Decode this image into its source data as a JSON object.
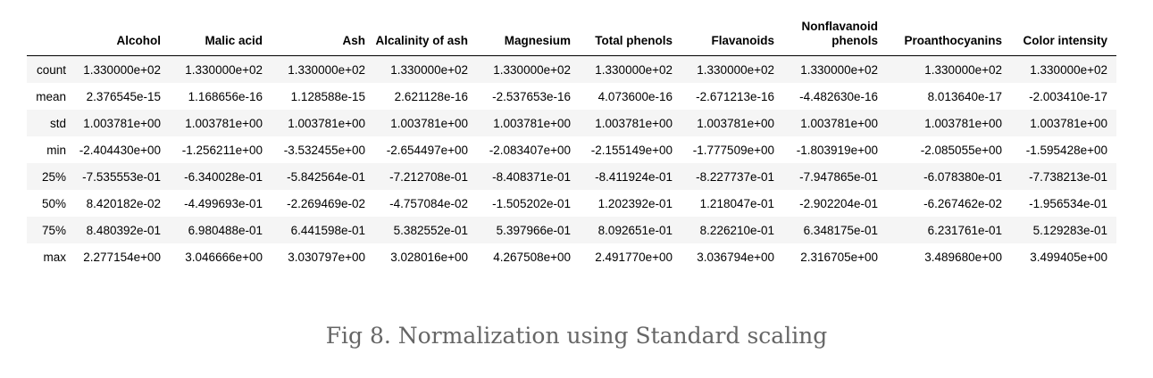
{
  "table": {
    "columns": [
      "Alcohol",
      "Malic acid",
      "Ash",
      "Alcalinity of ash",
      "Magnesium",
      "Total phenols",
      "Flavanoids",
      "Nonflavanoid phenols",
      "Proanthocyanins",
      "Color intensity"
    ],
    "rows": [
      {
        "label": "count",
        "values": [
          "1.330000e+02",
          "1.330000e+02",
          "1.330000e+02",
          "1.330000e+02",
          "1.330000e+02",
          "1.330000e+02",
          "1.330000e+02",
          "1.330000e+02",
          "1.330000e+02",
          "1.330000e+02"
        ]
      },
      {
        "label": "mean",
        "values": [
          "2.376545e-15",
          "1.168656e-16",
          "1.128588e-15",
          "2.621128e-16",
          "-2.537653e-16",
          "4.073600e-16",
          "-2.671213e-16",
          "-4.482630e-16",
          "8.013640e-17",
          "-2.003410e-17"
        ]
      },
      {
        "label": "std",
        "values": [
          "1.003781e+00",
          "1.003781e+00",
          "1.003781e+00",
          "1.003781e+00",
          "1.003781e+00",
          "1.003781e+00",
          "1.003781e+00",
          "1.003781e+00",
          "1.003781e+00",
          "1.003781e+00"
        ]
      },
      {
        "label": "min",
        "values": [
          "-2.404430e+00",
          "-1.256211e+00",
          "-3.532455e+00",
          "-2.654497e+00",
          "-2.083407e+00",
          "-2.155149e+00",
          "-1.777509e+00",
          "-1.803919e+00",
          "-2.085055e+00",
          "-1.595428e+00"
        ]
      },
      {
        "label": "25%",
        "values": [
          "-7.535553e-01",
          "-6.340028e-01",
          "-5.842564e-01",
          "-7.212708e-01",
          "-8.408371e-01",
          "-8.411924e-01",
          "-8.227737e-01",
          "-7.947865e-01",
          "-6.078380e-01",
          "-7.738213e-01"
        ]
      },
      {
        "label": "50%",
        "values": [
          "8.420182e-02",
          "-4.499693e-01",
          "-2.269469e-02",
          "-4.757084e-02",
          "-1.505202e-01",
          "1.202392e-01",
          "1.218047e-01",
          "-2.902204e-01",
          "-6.267462e-02",
          "-1.956534e-01"
        ]
      },
      {
        "label": "75%",
        "values": [
          "8.480392e-01",
          "6.980488e-01",
          "6.441598e-01",
          "5.382552e-01",
          "5.397966e-01",
          "8.092651e-01",
          "8.226210e-01",
          "6.348175e-01",
          "6.231761e-01",
          "5.129283e-01"
        ]
      },
      {
        "label": "max",
        "values": [
          "2.277154e+00",
          "3.046666e+00",
          "3.030797e+00",
          "3.028016e+00",
          "4.267508e+00",
          "2.491770e+00",
          "3.036794e+00",
          "2.316705e+00",
          "3.489680e+00",
          "3.499405e+00"
        ]
      }
    ]
  },
  "caption": "Fig 8. Normalization using Standard scaling"
}
